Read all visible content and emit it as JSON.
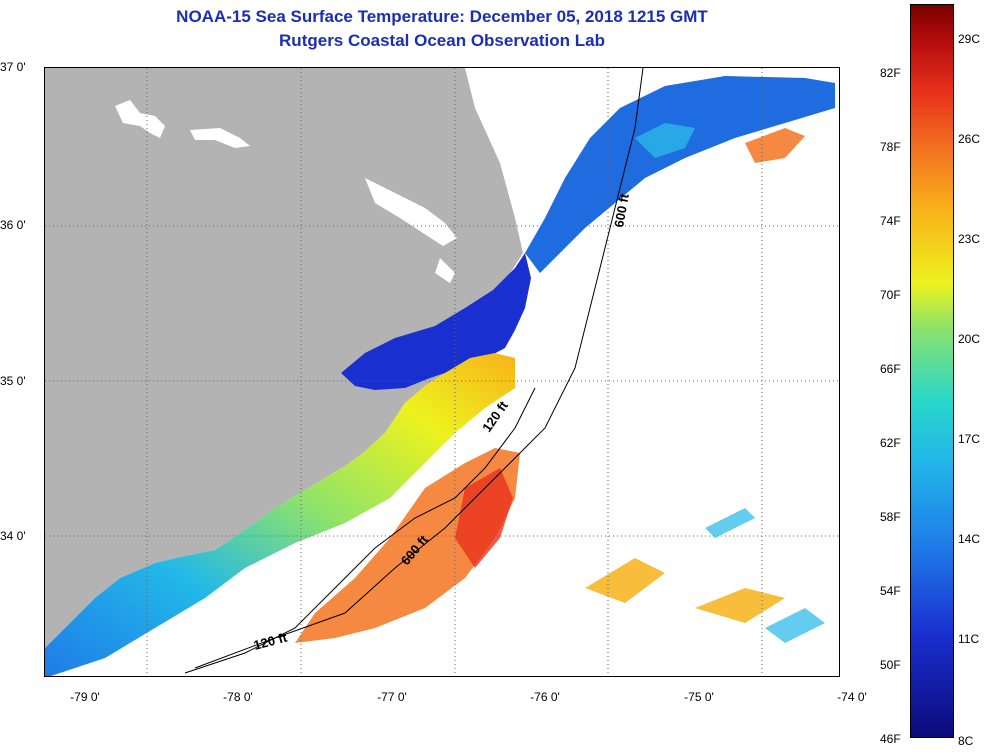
{
  "title": {
    "line1": "NOAA-15 Sea Surface Temperature:  December 05, 2018 1215 GMT",
    "line2": "Rutgers Coastal Ocean Observation Lab"
  },
  "map": {
    "latitude_labels": [
      "37 0'",
      "36 0'",
      "35 0'",
      "34 0'"
    ],
    "longitude_labels": [
      "-79 0'",
      "-78 0'",
      "-77 0'",
      "-76 0'",
      "-75 0'",
      "-74 0'"
    ],
    "isobath_labels": [
      "120 ft",
      "600 ft",
      "600 ft",
      "120 ft"
    ],
    "land_color": "#b3b3b3"
  },
  "colorbar": {
    "fahrenheit": [
      "82F",
      "78F",
      "74F",
      "70F",
      "66F",
      "62F",
      "58F",
      "54F",
      "50F",
      "46F"
    ],
    "celsius": [
      "29C",
      "26C",
      "23C",
      "20C",
      "17C",
      "14C",
      "11C",
      "8C"
    ]
  }
}
